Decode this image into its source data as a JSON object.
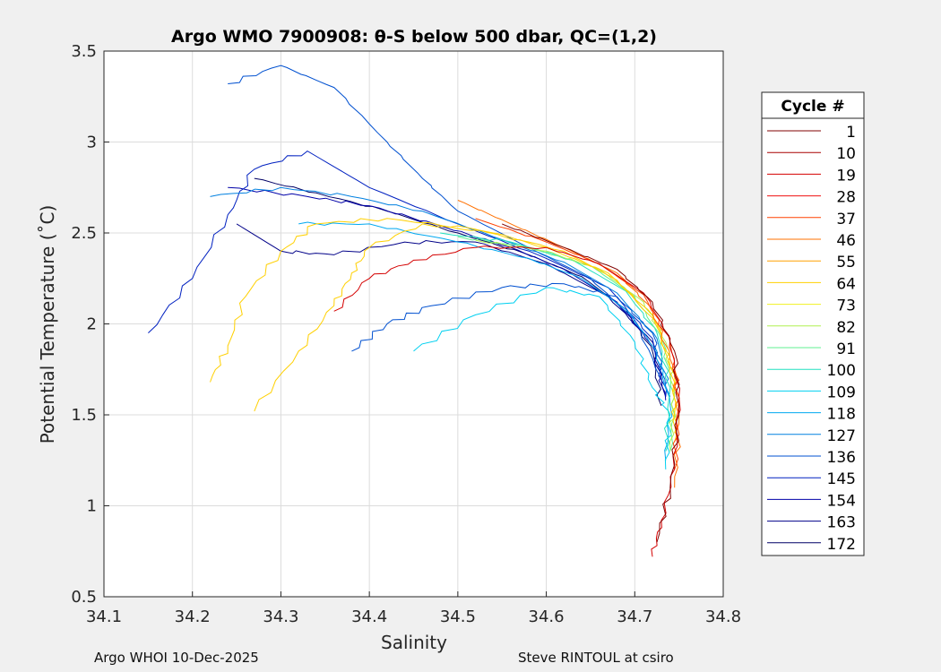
{
  "chart_data": {
    "type": "line",
    "title": "Argo WMO 7900908: θ-S below 500 dbar,  QC=(1,2)",
    "xlabel": "Salinity",
    "ylabel": "Potential Temperature (˚C)",
    "xlim": [
      34.1,
      34.8
    ],
    "ylim": [
      0.5,
      3.5
    ],
    "xticks": [
      "34.1",
      "34.2",
      "34.3",
      "34.4",
      "34.5",
      "34.6",
      "34.7",
      "34.8"
    ],
    "yticks": [
      "0.5",
      "1",
      "1.5",
      "2",
      "2.5",
      "3",
      "3.5"
    ],
    "grid": true,
    "legend": {
      "title": "Cycle #",
      "placement": "outside-right",
      "entries": [
        {
          "label": "1",
          "color": "#800000"
        },
        {
          "label": "10",
          "color": "#a80000"
        },
        {
          "label": "19",
          "color": "#d40000"
        },
        {
          "label": "28",
          "color": "#f01010"
        },
        {
          "label": "37",
          "color": "#ff4000"
        },
        {
          "label": "46",
          "color": "#ff7000"
        },
        {
          "label": "55",
          "color": "#ffa000"
        },
        {
          "label": "64",
          "color": "#ffd000"
        },
        {
          "label": "73",
          "color": "#f0f020"
        },
        {
          "label": "82",
          "color": "#b0f050"
        },
        {
          "label": "91",
          "color": "#60f090"
        },
        {
          "label": "100",
          "color": "#20e0c0"
        },
        {
          "label": "109",
          "color": "#00d0f0"
        },
        {
          "label": "118",
          "color": "#00a8f0"
        },
        {
          "label": "127",
          "color": "#0080e0"
        },
        {
          "label": "136",
          "color": "#0050d0"
        },
        {
          "label": "145",
          "color": "#0020c0"
        },
        {
          "label": "154",
          "color": "#0000a8"
        },
        {
          "label": "163",
          "color": "#000088"
        },
        {
          "label": "172",
          "color": "#000066"
        }
      ]
    },
    "tracks": [
      {
        "color": "#000066",
        "points": [
          [
            34.27,
            2.8
          ],
          [
            34.34,
            2.72
          ],
          [
            34.42,
            2.62
          ],
          [
            34.5,
            2.5
          ],
          [
            34.58,
            2.38
          ],
          [
            34.64,
            2.26
          ],
          [
            34.69,
            2.08
          ],
          [
            34.72,
            1.85
          ],
          [
            34.73,
            1.55
          ]
        ]
      },
      {
        "color": "#000088",
        "points": [
          [
            34.25,
            2.55
          ],
          [
            34.3,
            2.4
          ],
          [
            34.36,
            2.38
          ],
          [
            34.44,
            2.45
          ],
          [
            34.52,
            2.45
          ],
          [
            34.6,
            2.33
          ],
          [
            34.67,
            2.15
          ],
          [
            34.72,
            1.9
          ],
          [
            34.735,
            1.6
          ]
        ]
      },
      {
        "color": "#0000a8",
        "points": [
          [
            34.24,
            2.75
          ],
          [
            34.33,
            2.7
          ],
          [
            34.4,
            2.65
          ],
          [
            34.48,
            2.54
          ],
          [
            34.56,
            2.42
          ],
          [
            34.62,
            2.3
          ],
          [
            34.68,
            2.12
          ],
          [
            34.72,
            1.88
          ],
          [
            34.735,
            1.58
          ]
        ]
      },
      {
        "color": "#0020c0",
        "points": [
          [
            34.15,
            1.95
          ],
          [
            34.2,
            2.25
          ],
          [
            34.24,
            2.6
          ],
          [
            34.27,
            2.85
          ],
          [
            34.33,
            2.95
          ],
          [
            34.4,
            2.75
          ],
          [
            34.5,
            2.55
          ],
          [
            34.6,
            2.36
          ],
          [
            34.67,
            2.2
          ],
          [
            34.72,
            1.92
          ],
          [
            34.735,
            1.6
          ]
        ]
      },
      {
        "color": "#0050d0",
        "points": [
          [
            34.24,
            3.32
          ],
          [
            34.3,
            3.42
          ],
          [
            34.36,
            3.3
          ],
          [
            34.42,
            3.0
          ],
          [
            34.46,
            2.8
          ],
          [
            34.5,
            2.62
          ],
          [
            34.58,
            2.42
          ],
          [
            34.65,
            2.25
          ],
          [
            34.7,
            2.02
          ],
          [
            34.73,
            1.7
          ]
        ]
      },
      {
        "color": "#0050d0",
        "points": [
          [
            34.38,
            1.85
          ],
          [
            34.42,
            2.0
          ],
          [
            34.47,
            2.1
          ],
          [
            34.55,
            2.2
          ],
          [
            34.62,
            2.22
          ],
          [
            34.68,
            2.15
          ],
          [
            34.72,
            1.95
          ],
          [
            34.735,
            1.65
          ]
        ]
      },
      {
        "color": "#0080e0",
        "points": [
          [
            34.22,
            2.7
          ],
          [
            34.3,
            2.75
          ],
          [
            34.38,
            2.7
          ],
          [
            34.46,
            2.62
          ],
          [
            34.54,
            2.48
          ],
          [
            34.62,
            2.34
          ],
          [
            34.68,
            2.17
          ],
          [
            34.725,
            1.92
          ],
          [
            34.74,
            1.6
          ]
        ]
      },
      {
        "color": "#00a8f0",
        "points": [
          [
            34.32,
            2.55
          ],
          [
            34.4,
            2.55
          ],
          [
            34.5,
            2.45
          ],
          [
            34.58,
            2.36
          ],
          [
            34.64,
            2.25
          ],
          [
            34.69,
            2.08
          ],
          [
            34.725,
            1.85
          ],
          [
            34.74,
            1.55
          ],
          [
            34.735,
            1.25
          ]
        ]
      },
      {
        "color": "#00d0f0",
        "points": [
          [
            34.45,
            1.85
          ],
          [
            34.52,
            2.05
          ],
          [
            34.6,
            2.2
          ],
          [
            34.66,
            2.15
          ],
          [
            34.7,
            1.9
          ],
          [
            34.72,
            1.65
          ],
          [
            34.74,
            1.5
          ],
          [
            34.735,
            1.2
          ]
        ]
      },
      {
        "color": "#20e0c0",
        "points": [
          [
            34.48,
            2.5
          ],
          [
            34.56,
            2.45
          ],
          [
            34.63,
            2.35
          ],
          [
            34.69,
            2.18
          ],
          [
            34.725,
            1.95
          ],
          [
            34.74,
            1.65
          ],
          [
            34.735,
            1.3
          ]
        ]
      },
      {
        "color": "#60f090",
        "points": [
          [
            34.5,
            2.48
          ],
          [
            34.58,
            2.42
          ],
          [
            34.65,
            2.32
          ],
          [
            34.7,
            2.15
          ],
          [
            34.73,
            1.92
          ],
          [
            34.745,
            1.6
          ],
          [
            34.74,
            1.3
          ]
        ]
      },
      {
        "color": "#b0f050",
        "points": [
          [
            34.52,
            2.46
          ],
          [
            34.6,
            2.4
          ],
          [
            34.66,
            2.3
          ],
          [
            34.71,
            2.12
          ],
          [
            34.735,
            1.9
          ],
          [
            34.745,
            1.6
          ],
          [
            34.74,
            1.3
          ]
        ]
      },
      {
        "color": "#ffd000",
        "points": [
          [
            34.22,
            1.68
          ],
          [
            34.24,
            1.88
          ],
          [
            34.26,
            2.15
          ],
          [
            34.3,
            2.4
          ],
          [
            34.34,
            2.55
          ],
          [
            34.42,
            2.58
          ],
          [
            34.52,
            2.52
          ],
          [
            34.6,
            2.42
          ],
          [
            34.67,
            2.28
          ],
          [
            34.72,
            2.05
          ],
          [
            34.745,
            1.72
          ],
          [
            34.745,
            1.4
          ]
        ]
      },
      {
        "color": "#ffd000",
        "points": [
          [
            34.27,
            1.52
          ],
          [
            34.32,
            1.85
          ],
          [
            34.36,
            2.1
          ],
          [
            34.38,
            2.28
          ],
          [
            34.4,
            2.42
          ],
          [
            34.46,
            2.55
          ],
          [
            34.54,
            2.5
          ],
          [
            34.62,
            2.4
          ],
          [
            34.68,
            2.24
          ],
          [
            34.725,
            2.0
          ],
          [
            34.745,
            1.68
          ],
          [
            34.745,
            1.35
          ]
        ]
      },
      {
        "color": "#ff7000",
        "points": [
          [
            34.5,
            2.68
          ],
          [
            34.56,
            2.55
          ],
          [
            34.62,
            2.42
          ],
          [
            34.68,
            2.28
          ],
          [
            34.72,
            2.08
          ],
          [
            34.745,
            1.75
          ],
          [
            34.75,
            1.45
          ],
          [
            34.745,
            1.1
          ]
        ]
      },
      {
        "color": "#ff4000",
        "points": [
          [
            34.52,
            2.58
          ],
          [
            34.6,
            2.45
          ],
          [
            34.66,
            2.33
          ],
          [
            34.71,
            2.16
          ],
          [
            34.74,
            1.9
          ],
          [
            34.75,
            1.6
          ],
          [
            34.745,
            1.2
          ]
        ]
      },
      {
        "color": "#d40000",
        "points": [
          [
            34.36,
            2.07
          ],
          [
            34.4,
            2.25
          ],
          [
            34.45,
            2.35
          ],
          [
            34.52,
            2.42
          ],
          [
            34.6,
            2.42
          ],
          [
            34.66,
            2.33
          ],
          [
            34.71,
            2.17
          ],
          [
            34.74,
            1.92
          ],
          [
            34.75,
            1.6
          ],
          [
            34.745,
            1.2
          ],
          [
            34.73,
            0.92
          ],
          [
            34.72,
            0.72
          ]
        ]
      },
      {
        "color": "#800000",
        "points": [
          [
            34.55,
            2.55
          ],
          [
            34.62,
            2.42
          ],
          [
            34.68,
            2.3
          ],
          [
            34.72,
            2.12
          ],
          [
            34.745,
            1.85
          ],
          [
            34.75,
            1.5
          ],
          [
            34.74,
            1.1
          ],
          [
            34.725,
            0.8
          ]
        ]
      }
    ]
  },
  "footer": {
    "left": "Argo WHOI 10-Dec-2025",
    "right": "Steve RINTOUL at csiro"
  }
}
